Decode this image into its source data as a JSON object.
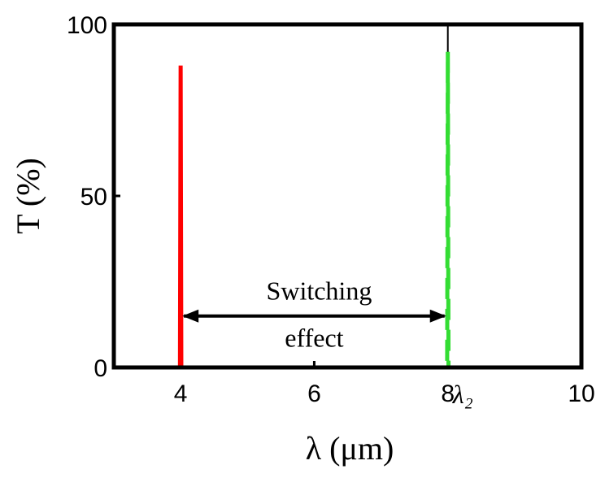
{
  "chart_data": {
    "type": "line",
    "xlabel": "λ (μm)",
    "ylabel": "T (%)",
    "xlim": [
      3,
      10
    ],
    "xticks": [
      4,
      6,
      8,
      10
    ],
    "ylim": [
      0,
      100
    ],
    "yticks": [
      0,
      50,
      100
    ],
    "series": [
      {
        "color": "#ff0000",
        "dashed": false,
        "x": [
          3,
          3.99,
          4,
          4.01,
          10
        ],
        "values": [
          0,
          0,
          88,
          0,
          0
        ]
      },
      {
        "color": "#33dd33",
        "dashed": true,
        "x": [
          3,
          7.99,
          8,
          8.01,
          10
        ],
        "values": [
          0,
          0,
          92,
          0,
          0
        ]
      }
    ],
    "reference_line": {
      "x": 8,
      "label": "λ₂"
    },
    "annotation": {
      "lines": [
        "Switching",
        "effect"
      ],
      "from": 4,
      "to": 8,
      "y": 15
    }
  }
}
